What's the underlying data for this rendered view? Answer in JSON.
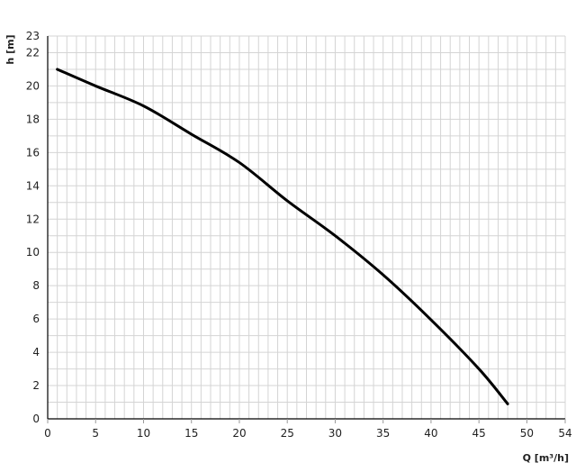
{
  "chart_data": {
    "type": "line",
    "title": "",
    "xlabel": "Q [m³/h]",
    "ylabel": "h [m]",
    "xlim": [
      0,
      54
    ],
    "ylim": [
      0,
      23
    ],
    "xticks": [
      0,
      5,
      10,
      15,
      20,
      25,
      30,
      35,
      40,
      45,
      50,
      54
    ],
    "yticks": [
      0,
      2,
      4,
      6,
      8,
      10,
      12,
      14,
      16,
      18,
      20,
      22,
      23
    ],
    "grid": true,
    "grid_step": {
      "x": 1,
      "y": 1
    },
    "colors": {
      "line": "#000000",
      "grid": "#d4d4d4",
      "axis": "#000000"
    },
    "series": [
      {
        "x": [
          1,
          5,
          10,
          15,
          20,
          25,
          30,
          35,
          40,
          45,
          48
        ],
        "y": [
          21.0,
          20.0,
          18.8,
          17.1,
          15.4,
          13.1,
          11.0,
          8.65,
          5.95,
          3.0,
          0.9
        ]
      }
    ]
  }
}
